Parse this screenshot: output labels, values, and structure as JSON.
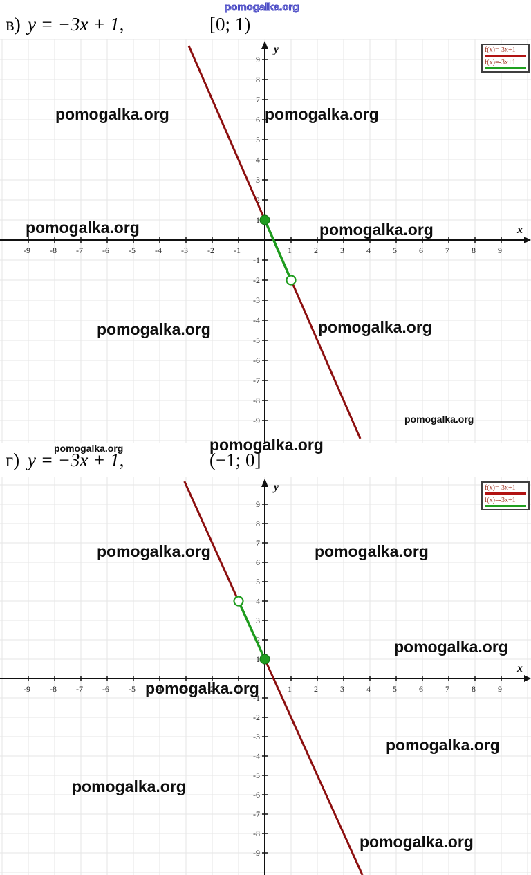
{
  "watermark_text": "pomogalka.org",
  "problems": [
    {
      "label": "в)",
      "equation": "y = −3x + 1,",
      "interval": "[0; 1)"
    },
    {
      "label": "г)",
      "equation": "y = −3x + 1,",
      "interval": "(−1; 0]"
    }
  ],
  "colors": {
    "line_red": "#8c0f0f",
    "segment_green": "#1e9c1e",
    "legend_red": "#b11212",
    "legend_green": "#1fa01f",
    "grid": "#e6e6e6",
    "axis": "#111111",
    "tick_text": "#222222",
    "legend_text": "#a23828",
    "watermark_black": "#0e0e0e",
    "watermark_blue": "#4040c0"
  },
  "chart_data": [
    {
      "type": "line",
      "title": "в) y = −3x + 1, [0; 1)",
      "xlabel": "x",
      "ylabel": "y",
      "x_range": [
        -10,
        10
      ],
      "y_range": [
        -10,
        10
      ],
      "grid": true,
      "x_ticks": [
        -9,
        -8,
        -7,
        -6,
        -5,
        -4,
        -3,
        -2,
        -1,
        1,
        2,
        3,
        4,
        5,
        6,
        7,
        8,
        9
      ],
      "y_ticks": [
        -9,
        -8,
        -7,
        -6,
        -5,
        -4,
        -3,
        -2,
        -1,
        1,
        2,
        3,
        4,
        5,
        6,
        7,
        8,
        9
      ],
      "legend_position": "top-right",
      "legend": [
        {
          "label": "f(x)=-3x+1",
          "color": "#b11212"
        },
        {
          "label": "f(x)=-3x+1",
          "color": "#1fa01f"
        }
      ],
      "line": {
        "equation": "f(x) = −3x + 1",
        "slope": -3,
        "intercept": 1,
        "color": "#8c0f0f"
      },
      "segment": {
        "domain": "[0; 1)",
        "from": {
          "x": 0,
          "y": 1,
          "closed": true
        },
        "to": {
          "x": 1,
          "y": -2,
          "closed": false
        },
        "color": "#1e9c1e"
      },
      "key_points": [
        {
          "x": 0,
          "y": 1,
          "type": "filled"
        },
        {
          "x": 1,
          "y": -2,
          "type": "open"
        }
      ]
    },
    {
      "type": "line",
      "title": "г) y = −3x + 1, (−1; 0]",
      "xlabel": "x",
      "ylabel": "y",
      "x_range": [
        -10,
        10
      ],
      "y_range": [
        -10,
        10
      ],
      "grid": true,
      "x_ticks": [
        -9,
        -8,
        -7,
        -6,
        -5,
        -4,
        -3,
        -2,
        -1,
        1,
        2,
        3,
        4,
        5,
        6,
        7,
        8,
        9
      ],
      "y_ticks": [
        -9,
        -8,
        -7,
        -6,
        -5,
        -4,
        -3,
        -2,
        -1,
        1,
        2,
        3,
        4,
        5,
        6,
        7,
        8,
        9
      ],
      "legend_position": "top-right",
      "legend": [
        {
          "label": "f(x)=-3x+1",
          "color": "#b11212"
        },
        {
          "label": "f(x)=-3x+1",
          "color": "#1fa01f"
        }
      ],
      "line": {
        "equation": "f(x) = −3x + 1",
        "slope": -3,
        "intercept": 1,
        "color": "#8c0f0f"
      },
      "segment": {
        "domain": "(−1; 0]",
        "from": {
          "x": -1,
          "y": 4,
          "closed": false
        },
        "to": {
          "x": 0,
          "y": 1,
          "closed": true
        },
        "color": "#1e9c1e"
      },
      "key_points": [
        {
          "x": -1,
          "y": 4,
          "type": "open"
        },
        {
          "x": 0,
          "y": 1,
          "type": "filled"
        }
      ]
    }
  ]
}
